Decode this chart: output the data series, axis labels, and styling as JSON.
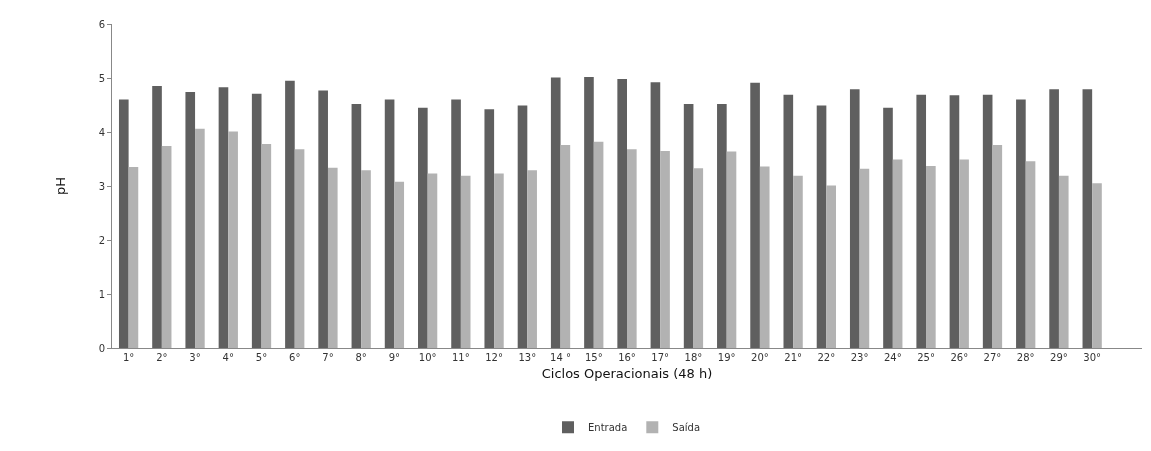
{
  "chart_data": {
    "type": "bar",
    "xlabel": "Ciclos Operacionais (48 h)",
    "ylabel": "pH",
    "categories": [
      "1°",
      "2°",
      "3°",
      "4°",
      "5°",
      "6°",
      "7°",
      "8°",
      "9°",
      "10°",
      "11°",
      "12°",
      "13°",
      "14 °",
      "15°",
      "16°",
      "17°",
      "18°",
      "19°",
      "20°",
      "21°",
      "22°",
      "23°",
      "24°",
      "25°",
      "26°",
      "27°",
      "28°",
      "29°",
      "30°",
      null
    ],
    "series": [
      {
        "name": "Entrada",
        "color": "#5f5f5f",
        "values": [
          4.6,
          4.85,
          4.74,
          4.83,
          4.71,
          4.95,
          4.77,
          4.52,
          4.6,
          4.45,
          4.6,
          4.42,
          4.49,
          5.01,
          5.02,
          4.98,
          4.92,
          4.52,
          4.52,
          4.91,
          4.69,
          4.49,
          4.79,
          4.45,
          4.69,
          4.68,
          4.69,
          4.6,
          4.79,
          4.79,
          null
        ]
      },
      {
        "name": "Saída",
        "color": "#b2b2b2",
        "values": [
          3.35,
          3.74,
          4.06,
          4.01,
          3.78,
          3.68,
          3.34,
          3.29,
          3.08,
          3.23,
          3.19,
          3.23,
          3.29,
          3.76,
          3.82,
          3.68,
          3.65,
          3.33,
          3.64,
          3.36,
          3.19,
          3.01,
          3.32,
          3.49,
          3.37,
          3.49,
          3.76,
          3.46,
          3.19,
          3.05,
          null
        ]
      }
    ],
    "ylim": [
      0,
      6
    ],
    "yticks": [
      0,
      1,
      2,
      3,
      4,
      5,
      6
    ],
    "grid": false,
    "legend": "bottom"
  }
}
